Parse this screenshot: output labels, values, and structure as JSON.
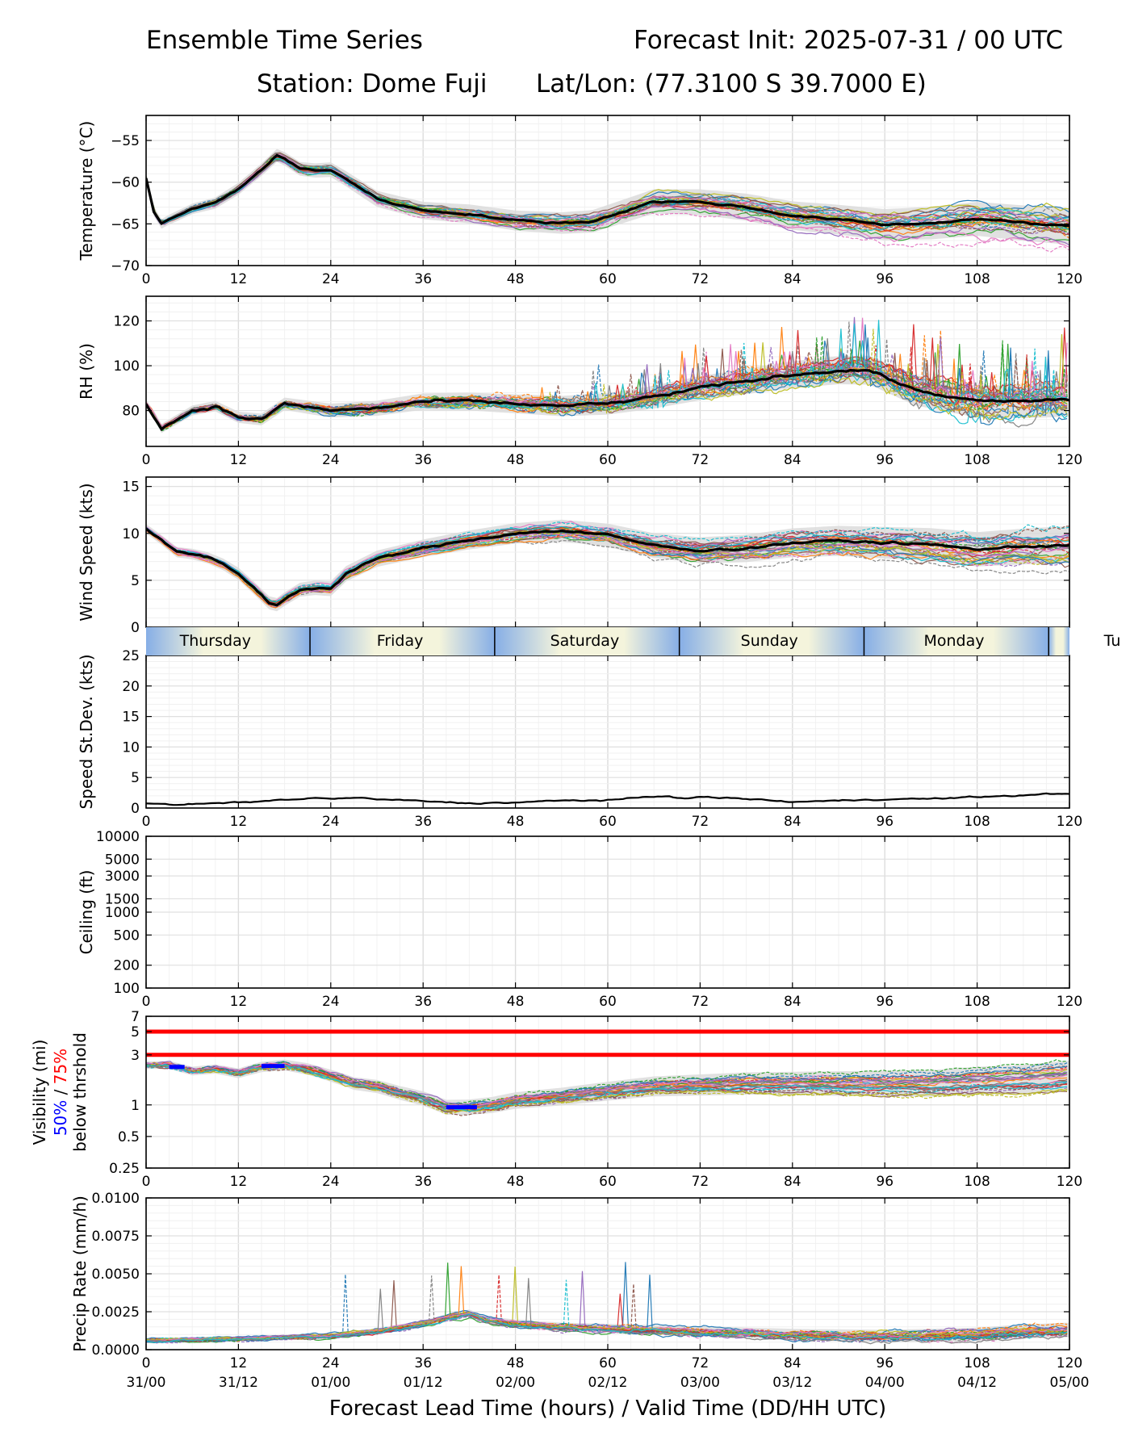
{
  "header": {
    "title_left": "Ensemble Time Series",
    "title_right": "Forecast Init: 2025-07-31 / 00 UTC",
    "station": "Station: Dome Fuji",
    "latlon": "Lat/Lon: (77.3100 S 39.7000 E)"
  },
  "colors": {
    "member_palette": [
      "#1f77b4",
      "#ff7f0e",
      "#2ca02c",
      "#d62728",
      "#9467bd",
      "#8c564b",
      "#e377c2",
      "#7f7f7f",
      "#bcbd22",
      "#17becf"
    ],
    "mean": "#000000",
    "spread": "#d9d9d9",
    "threshold": "#ff0000",
    "pct50": "#0000ff",
    "pct75": "#ff0000",
    "dayband_light": "#f4f4dc",
    "dayband_dark": "#86aee6"
  },
  "x_axis": {
    "ticks": [
      0,
      12,
      24,
      36,
      48,
      60,
      72,
      84,
      96,
      108,
      120
    ],
    "valid_labels": [
      "31/00",
      "31/12",
      "01/00",
      "01/12",
      "02/00",
      "02/12",
      "03/00",
      "03/12",
      "04/00",
      "04/12",
      "05/00"
    ],
    "xlabel": "Forecast Lead Time (hours) / Valid Time (DD/HH UTC)"
  },
  "day_band": {
    "days": [
      "Thursday",
      "Friday",
      "Saturday",
      "Sunday",
      "Monday",
      "Tu"
    ],
    "boundaries_hours": [
      21.3,
      45.3,
      69.3,
      93.3,
      117.3
    ]
  },
  "chart_data": [
    {
      "type": "line",
      "ylabel": "Temperature (°C)",
      "yticks": [
        -70,
        -65,
        -60,
        -55
      ],
      "ylim": [
        -70,
        -52
      ],
      "members": 30,
      "mean": {
        "x": [
          0,
          1,
          2,
          3,
          6,
          9,
          12,
          15,
          17,
          18,
          20,
          22,
          24,
          26,
          30,
          36,
          42,
          48,
          54,
          58,
          62,
          66,
          72,
          78,
          84,
          90,
          96,
          102,
          108,
          114,
          120
        ],
        "y": [
          -59.5,
          -63.5,
          -65,
          -64.5,
          -63.2,
          -62.5,
          -60.8,
          -58.5,
          -56.8,
          -57.2,
          -58.4,
          -58.6,
          -58.5,
          -59.6,
          -62,
          -63.4,
          -63.8,
          -64.6,
          -64.9,
          -64.7,
          -63.5,
          -62.3,
          -62.4,
          -63,
          -64,
          -64.5,
          -65.1,
          -64.9,
          -64.4,
          -64.9,
          -65.3
        ]
      }
    },
    {
      "type": "line",
      "ylabel": "RH (%)",
      "yticks": [
        80,
        100,
        120
      ],
      "ylim": [
        64,
        131
      ],
      "members": 30,
      "mean": {
        "x": [
          0,
          1,
          2,
          4,
          6,
          9,
          12,
          15,
          18,
          24,
          30,
          36,
          42,
          48,
          54,
          60,
          66,
          72,
          78,
          84,
          90,
          94,
          96,
          100,
          108,
          114,
          120
        ],
        "y": [
          83,
          78,
          72,
          76,
          80,
          82,
          77,
          76,
          83,
          80,
          81,
          84,
          84,
          83,
          82,
          83,
          86,
          90,
          93,
          96,
          98,
          98,
          95,
          89,
          84,
          84,
          85
        ]
      }
    },
    {
      "type": "line",
      "ylabel": "Wind Speed (kts)",
      "yticks": [
        0,
        5,
        10,
        15
      ],
      "ylim": [
        0,
        16
      ],
      "members": 30,
      "mean": {
        "x": [
          0,
          2,
          4,
          6,
          8,
          10,
          12,
          14,
          16,
          17,
          18,
          20,
          22,
          24,
          26,
          30,
          36,
          42,
          48,
          54,
          60,
          66,
          72,
          78,
          84,
          90,
          96,
          102,
          108,
          114,
          120
        ],
        "y": [
          10.5,
          9.3,
          8,
          7.8,
          7.4,
          6.7,
          5.7,
          4.2,
          2.6,
          2.4,
          3,
          4,
          4.2,
          4.1,
          5.7,
          7.3,
          8.4,
          9.3,
          10,
          10.3,
          9.8,
          8.7,
          8.2,
          8.4,
          9,
          9.2,
          9,
          8.8,
          8.3,
          8.6,
          8.8
        ]
      }
    },
    {
      "type": "line",
      "ylabel": "Speed St.Dev. (kts)",
      "yticks": [
        0,
        5,
        10,
        15,
        20,
        25
      ],
      "ylim": [
        0,
        25
      ],
      "members": 1,
      "mean": {
        "x": [
          0,
          2,
          4,
          8,
          12,
          16,
          20,
          22,
          24,
          27,
          30,
          33,
          36,
          42,
          48,
          54,
          60,
          66,
          68,
          70,
          72,
          78,
          84,
          90,
          96,
          102,
          108,
          114,
          120
        ],
        "y": [
          0.7,
          0.6,
          0.5,
          0.7,
          0.9,
          1.2,
          1.5,
          1.6,
          1.5,
          1.7,
          1.4,
          1.3,
          1.1,
          0.8,
          0.9,
          1.2,
          1.3,
          1.8,
          2,
          1.6,
          1.8,
          1.5,
          1,
          1.2,
          1.5,
          1.5,
          1.8,
          2.1,
          2.4
        ]
      }
    },
    {
      "type": "line",
      "ylabel": "Ceiling (ft)",
      "yscale": "log",
      "yticks": [
        100,
        200,
        500,
        1000,
        1500,
        3000,
        5000,
        10000
      ],
      "ylim": [
        100,
        10000
      ],
      "members": 0
    },
    {
      "type": "line",
      "ylabel": "Visibility (mi)",
      "ylabel_pct50": "50%",
      "ylabel_slash": " / ",
      "ylabel_pct75": "75%",
      "ylabel_line3": "below thrshold",
      "yscale": "log",
      "yticks": [
        0.25,
        0.5,
        1,
        3,
        5,
        7
      ],
      "ylim": [
        0.25,
        7
      ],
      "thresholds": [
        5,
        3
      ],
      "members": 30,
      "median": {
        "x": [
          0,
          3,
          6,
          9,
          12,
          15,
          18,
          21,
          24,
          27,
          30,
          33,
          36,
          39,
          42,
          45,
          48,
          54,
          60,
          66,
          72,
          78,
          84,
          90,
          96,
          102,
          108,
          114,
          120
        ],
        "y": [
          2.4,
          2.4,
          2.1,
          2.2,
          2,
          2.3,
          2.4,
          2.2,
          1.9,
          1.6,
          1.5,
          1.3,
          1.15,
          0.95,
          0.95,
          1,
          1.1,
          1.2,
          1.35,
          1.5,
          1.55,
          1.6,
          1.6,
          1.6,
          1.6,
          1.6,
          1.7,
          1.75,
          1.9
        ]
      },
      "below_50pct_segments": [
        [
          3,
          5
        ],
        [
          15,
          18
        ],
        [
          39,
          43
        ]
      ]
    },
    {
      "type": "line",
      "ylabel": "Precip Rate (mm/h)",
      "yticks": [
        0.0,
        0.0025,
        0.005,
        0.0075,
        0.01
      ],
      "ytick_labels": [
        "0.0000",
        "0.0025",
        "0.0050",
        "0.0075",
        "0.0100"
      ],
      "ylim": [
        0,
        0.01
      ],
      "members": 30,
      "mean": {
        "x": [
          0,
          12,
          24,
          30,
          36,
          40,
          42,
          44,
          48,
          54,
          60,
          66,
          72,
          84,
          96,
          108,
          114,
          120
        ],
        "y": [
          0.0006,
          0.0007,
          0.0009,
          0.0012,
          0.0017,
          0.0022,
          0.0024,
          0.002,
          0.0017,
          0.0015,
          0.0014,
          0.0013,
          0.0012,
          0.001,
          0.0009,
          0.001,
          0.0012,
          0.0013
        ]
      }
    }
  ]
}
